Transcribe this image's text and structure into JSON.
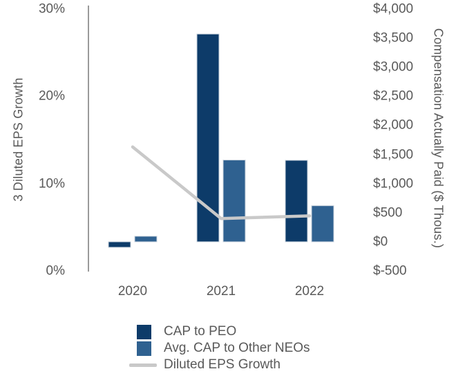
{
  "chart_data": {
    "type": "combo-bar-line",
    "title": "",
    "categories": [
      "2020",
      "2021",
      "2022"
    ],
    "series": [
      {
        "name": "CAP to PEO",
        "type": "bar",
        "axis": "right",
        "color": "#0d3b69",
        "values": [
          -95,
          3570,
          1400
        ]
      },
      {
        "name": "Avg. CAP to Other NEOs",
        "type": "bar",
        "axis": "right",
        "color": "#2f6190",
        "values": [
          95,
          1405,
          620
        ]
      },
      {
        "name": "Diluted EPS Growth",
        "type": "line",
        "axis": "left",
        "color": "#c9c9c9",
        "values": [
          14.2,
          6.0,
          6.3
        ]
      }
    ],
    "left_axis": {
      "title": "3 Diluted EPS Growth",
      "range": [
        0,
        30
      ],
      "ticks": [
        {
          "label": "0%",
          "value": 0
        },
        {
          "label": "10%",
          "value": 10
        },
        {
          "label": "20%",
          "value": 20
        },
        {
          "label": "30%",
          "value": 30
        }
      ]
    },
    "right_axis": {
      "title": "Compensation Actually Paid ($ Thous.)",
      "range": [
        -500,
        4000
      ],
      "ticks": [
        {
          "label": "$4,000",
          "value": 4000
        },
        {
          "label": "$3,500",
          "value": 3500
        },
        {
          "label": "$3,000",
          "value": 3000
        },
        {
          "label": "$2,500",
          "value": 2500
        },
        {
          "label": "$2,000",
          "value": 2000
        },
        {
          "label": "$1,500",
          "value": 1500
        },
        {
          "label": "$1,000",
          "value": 1000
        },
        {
          "label": "$500",
          "value": 500
        },
        {
          "label": "$0",
          "value": 0
        },
        {
          "label": "$-500",
          "value": -500
        }
      ]
    },
    "legend": {
      "position": "bottom",
      "items": [
        {
          "label": "CAP to PEO",
          "swatch": "square",
          "color": "#0d3b69"
        },
        {
          "label": "Avg. CAP to Other NEOs",
          "swatch": "square",
          "color": "#2f6190"
        },
        {
          "label": "Diluted EPS Growth",
          "swatch": "line",
          "color": "#c9c9c9"
        }
      ]
    },
    "grid": false,
    "background": "#ffffff",
    "text_color": "#595959",
    "axis_line_color": "#9a9a9a",
    "bar_edge_color": "#c9d3dd"
  }
}
